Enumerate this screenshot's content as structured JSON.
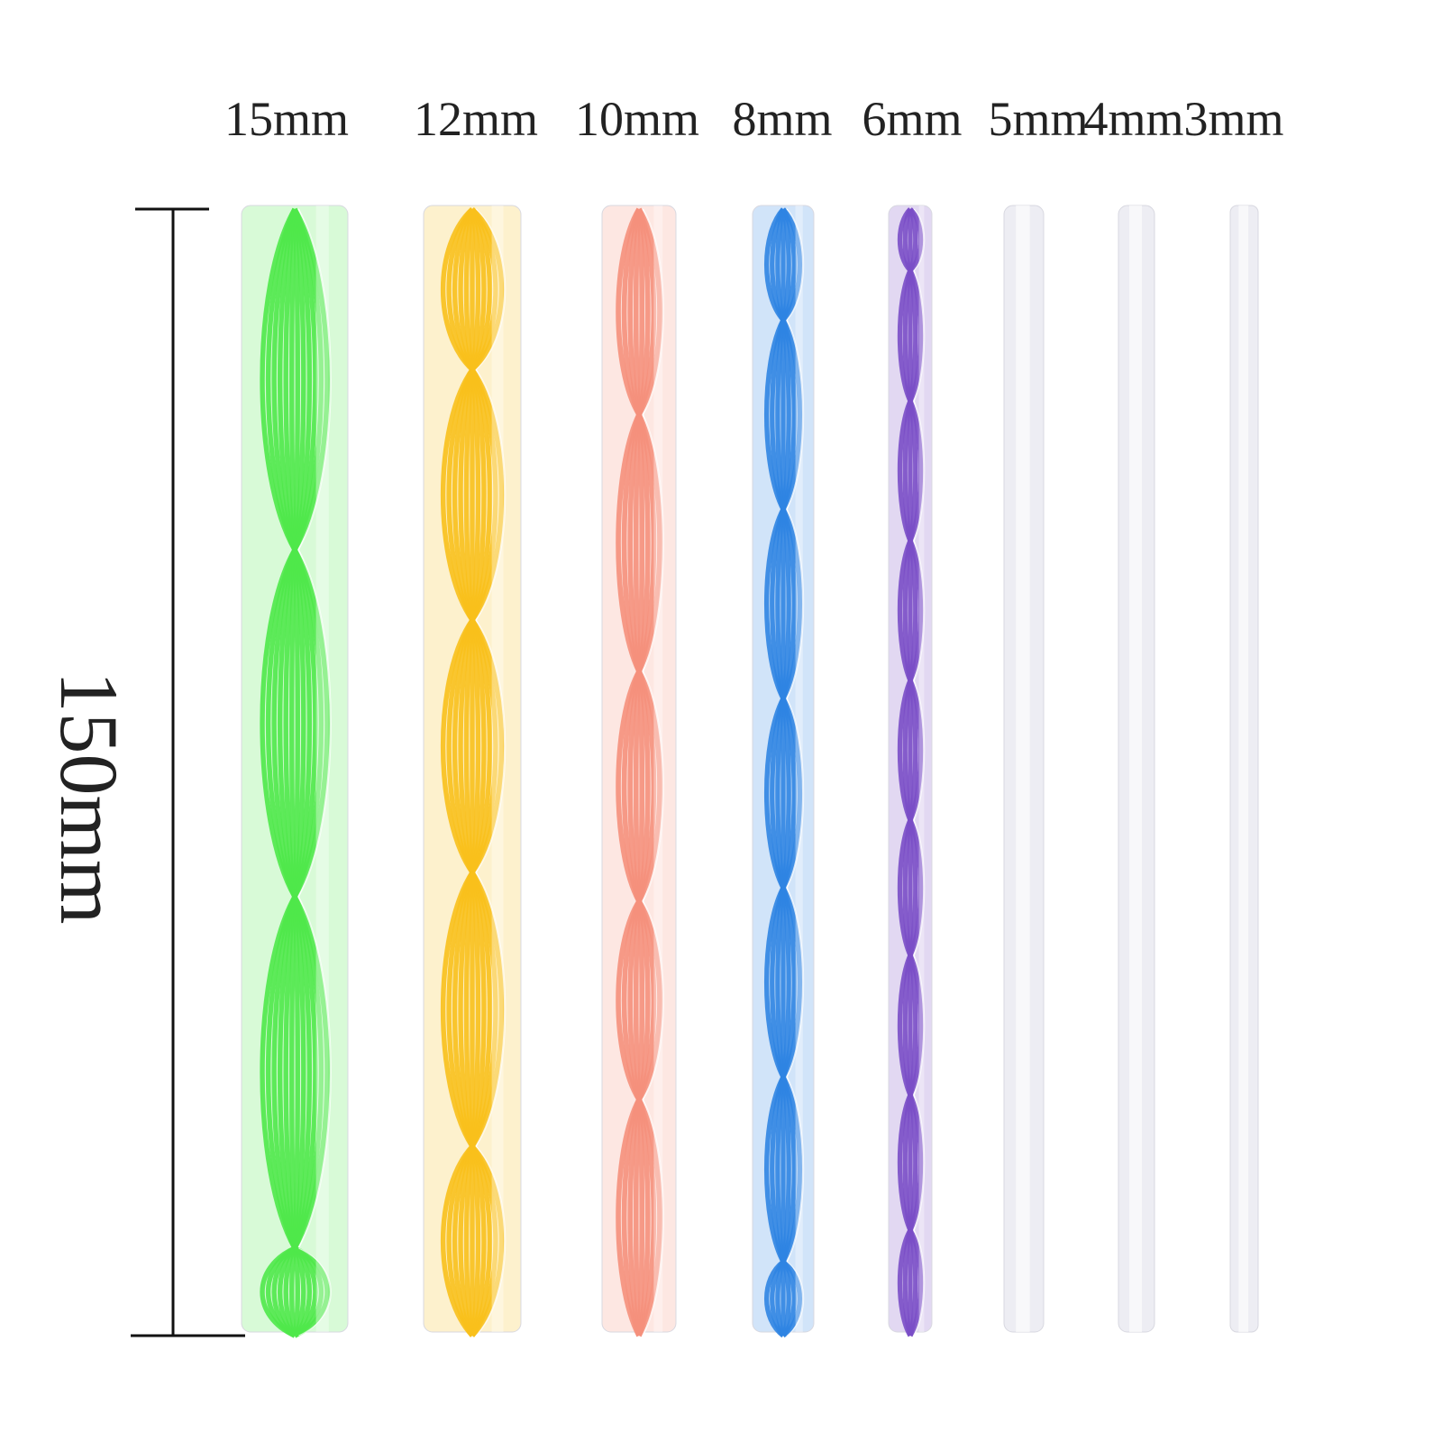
{
  "diameters": [
    "15mm",
    "12mm",
    "10mm",
    "8mm",
    "6mm",
    "5mm",
    "4mm",
    "3mm"
  ],
  "length": "150mm"
}
